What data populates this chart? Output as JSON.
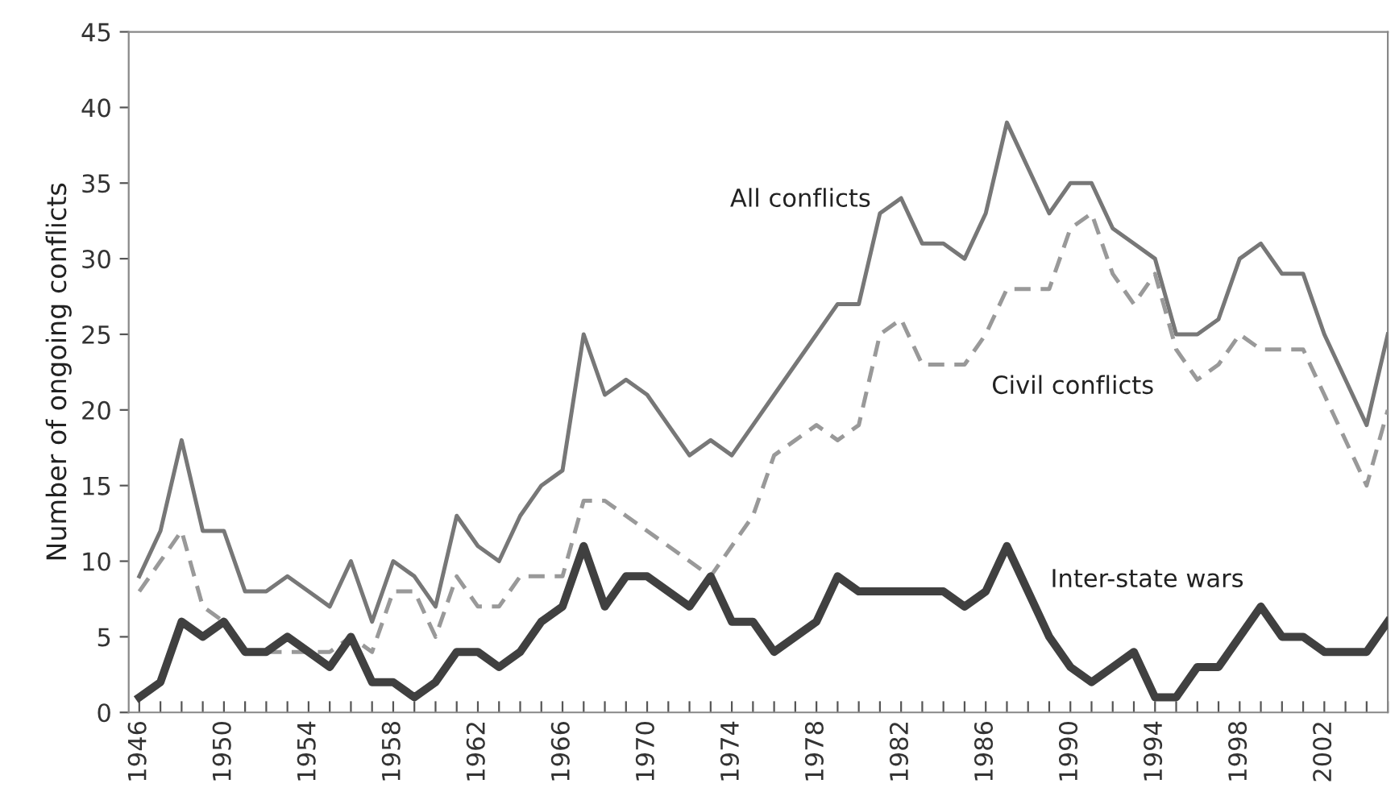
{
  "chart_data": {
    "type": "line",
    "ylabel": "Number of ongoing conflicts",
    "x": [
      1946,
      1947,
      1948,
      1949,
      1950,
      1951,
      1952,
      1953,
      1954,
      1955,
      1956,
      1957,
      1958,
      1959,
      1960,
      1961,
      1962,
      1963,
      1964,
      1965,
      1966,
      1967,
      1968,
      1969,
      1970,
      1971,
      1972,
      1973,
      1974,
      1975,
      1976,
      1977,
      1978,
      1979,
      1980,
      1981,
      1982,
      1983,
      1984,
      1985,
      1986,
      1987,
      1988,
      1989,
      1990,
      1991,
      1992,
      1993,
      1994,
      1995,
      1996,
      1997,
      1998,
      1999,
      2000,
      2001,
      2002,
      2003,
      2004,
      2005
    ],
    "series": [
      {
        "name": "All conflicts",
        "color": "#777777",
        "line_style": "solid",
        "values": [
          9,
          12,
          18,
          12,
          12,
          8,
          8,
          9,
          8,
          7,
          10,
          6,
          10,
          9,
          7,
          13,
          11,
          10,
          13,
          15,
          16,
          25,
          21,
          22,
          21,
          19,
          17,
          18,
          17,
          19,
          21,
          23,
          25,
          27,
          27,
          33,
          34,
          31,
          31,
          30,
          33,
          39,
          36,
          33,
          35,
          35,
          32,
          31,
          30,
          25,
          25,
          26,
          30,
          31,
          29,
          29,
          25,
          22,
          19,
          25
        ]
      },
      {
        "name": "Civil conflicts",
        "color": "#999999",
        "line_style": "dashed",
        "values": [
          8,
          10,
          12,
          7,
          6,
          4,
          4,
          4,
          4,
          4,
          5,
          4,
          8,
          8,
          5,
          9,
          7,
          7,
          9,
          9,
          9,
          14,
          14,
          13,
          12,
          11,
          10,
          9,
          11,
          13,
          17,
          18,
          19,
          18,
          19,
          25,
          26,
          23,
          23,
          23,
          25,
          28,
          28,
          28,
          32,
          33,
          29,
          27,
          29,
          24,
          22,
          23,
          25,
          24,
          24,
          24,
          21,
          18,
          15,
          20
        ]
      },
      {
        "name": "Inter-state wars",
        "color": "#404040",
        "line_style": "solid",
        "values": [
          1,
          2,
          6,
          5,
          6,
          4,
          4,
          5,
          4,
          3,
          5,
          2,
          2,
          1,
          2,
          4,
          4,
          3,
          4,
          6,
          7,
          11,
          7,
          9,
          9,
          8,
          7,
          9,
          6,
          6,
          4,
          5,
          6,
          9,
          8,
          8,
          8,
          8,
          8,
          7,
          8,
          11,
          8,
          5,
          3,
          2,
          3,
          4,
          1,
          1,
          3,
          3,
          5,
          7,
          5,
          5,
          4,
          4,
          4,
          6
        ]
      }
    ],
    "xlim": [
      1945.5,
      2005
    ],
    "xticks": [
      {
        "value": 1946,
        "label": "1946"
      },
      {
        "value": 1947,
        "label": null
      },
      {
        "value": 1948,
        "label": null
      },
      {
        "value": 1949,
        "label": null
      },
      {
        "value": 1950,
        "label": "1950"
      },
      {
        "value": 1951,
        "label": null
      },
      {
        "value": 1952,
        "label": null
      },
      {
        "value": 1953,
        "label": null
      },
      {
        "value": 1954,
        "label": "1954"
      },
      {
        "value": 1955,
        "label": null
      },
      {
        "value": 1956,
        "label": null
      },
      {
        "value": 1957,
        "label": null
      },
      {
        "value": 1958,
        "label": "1958"
      },
      {
        "value": 1959,
        "label": null
      },
      {
        "value": 1960,
        "label": null
      },
      {
        "value": 1961,
        "label": null
      },
      {
        "value": 1962,
        "label": "1962"
      },
      {
        "value": 1963,
        "label": null
      },
      {
        "value": 1964,
        "label": null
      },
      {
        "value": 1965,
        "label": null
      },
      {
        "value": 1966,
        "label": "1966"
      },
      {
        "value": 1967,
        "label": null
      },
      {
        "value": 1968,
        "label": null
      },
      {
        "value": 1969,
        "label": null
      },
      {
        "value": 1970,
        "label": "1970"
      },
      {
        "value": 1971,
        "label": null
      },
      {
        "value": 1972,
        "label": null
      },
      {
        "value": 1973,
        "label": null
      },
      {
        "value": 1974,
        "label": "1974"
      },
      {
        "value": 1975,
        "label": null
      },
      {
        "value": 1976,
        "label": null
      },
      {
        "value": 1977,
        "label": null
      },
      {
        "value": 1978,
        "label": "1978"
      },
      {
        "value": 1979,
        "label": null
      },
      {
        "value": 1980,
        "label": null
      },
      {
        "value": 1981,
        "label": null
      },
      {
        "value": 1982,
        "label": "1982"
      },
      {
        "value": 1983,
        "label": null
      },
      {
        "value": 1984,
        "label": null
      },
      {
        "value": 1985,
        "label": null
      },
      {
        "value": 1986,
        "label": "1986"
      },
      {
        "value": 1987,
        "label": null
      },
      {
        "value": 1988,
        "label": null
      },
      {
        "value": 1989,
        "label": null
      },
      {
        "value": 1990,
        "label": "1990"
      },
      {
        "value": 1991,
        "label": null
      },
      {
        "value": 1992,
        "label": null
      },
      {
        "value": 1993,
        "label": null
      },
      {
        "value": 1994,
        "label": "1994"
      },
      {
        "value": 1995,
        "label": null
      },
      {
        "value": 1996,
        "label": null
      },
      {
        "value": 1997,
        "label": null
      },
      {
        "value": 1998,
        "label": "1998"
      },
      {
        "value": 1999,
        "label": null
      },
      {
        "value": 2000,
        "label": null
      },
      {
        "value": 2001,
        "label": null
      },
      {
        "value": 2002,
        "label": "2002"
      },
      {
        "value": 2003,
        "label": null
      },
      {
        "value": 2004,
        "label": null
      },
      {
        "value": 2005,
        "label": null
      }
    ],
    "ylim": [
      0,
      45
    ],
    "yticks": [
      0,
      5,
      10,
      15,
      20,
      25,
      30,
      35,
      40,
      45
    ],
    "grid": false,
    "legend": false,
    "marker": "none"
  }
}
